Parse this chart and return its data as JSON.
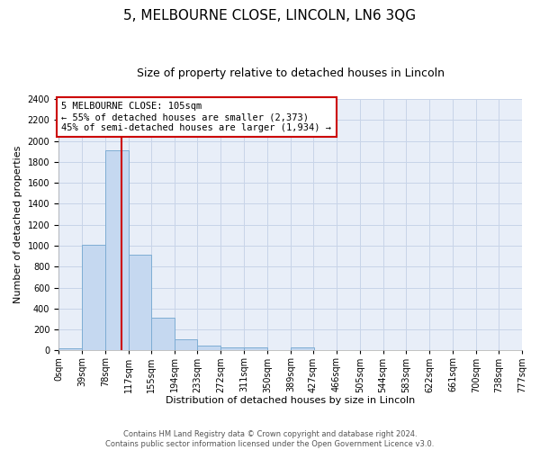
{
  "title": "5, MELBOURNE CLOSE, LINCOLN, LN6 3QG",
  "subtitle": "Size of property relative to detached houses in Lincoln",
  "xlabel": "Distribution of detached houses by size in Lincoln",
  "ylabel": "Number of detached properties",
  "bins": [
    0,
    39,
    78,
    117,
    155,
    194,
    233,
    272,
    311,
    350,
    389,
    427,
    466,
    505,
    544,
    583,
    622,
    661,
    700,
    738,
    777
  ],
  "counts": [
    20,
    1010,
    1910,
    910,
    315,
    105,
    50,
    30,
    30,
    0,
    30,
    0,
    0,
    0,
    0,
    0,
    0,
    0,
    0,
    0
  ],
  "bin_labels": [
    "0sqm",
    "39sqm",
    "78sqm",
    "117sqm",
    "155sqm",
    "194sqm",
    "233sqm",
    "272sqm",
    "311sqm",
    "350sqm",
    "389sqm",
    "427sqm",
    "466sqm",
    "505sqm",
    "544sqm",
    "583sqm",
    "622sqm",
    "661sqm",
    "700sqm",
    "738sqm",
    "777sqm"
  ],
  "bar_color": "#c5d8f0",
  "bar_edge_color": "#7eadd4",
  "grid_color": "#c8d4e8",
  "bg_color": "#e8eef8",
  "red_line_x": 105,
  "red_line_color": "#cc0000",
  "annotation_box_color": "#cc0000",
  "annotation_text": "5 MELBOURNE CLOSE: 105sqm\n← 55% of detached houses are smaller (2,373)\n45% of semi-detached houses are larger (1,934) →",
  "ylim": [
    0,
    2400
  ],
  "yticks": [
    0,
    200,
    400,
    600,
    800,
    1000,
    1200,
    1400,
    1600,
    1800,
    2000,
    2200,
    2400
  ],
  "footnote": "Contains HM Land Registry data © Crown copyright and database right 2024.\nContains public sector information licensed under the Open Government Licence v3.0.",
  "title_fontsize": 11,
  "subtitle_fontsize": 9,
  "ylabel_fontsize": 8,
  "xlabel_fontsize": 8,
  "tick_fontsize": 7,
  "annot_fontsize": 7.5
}
